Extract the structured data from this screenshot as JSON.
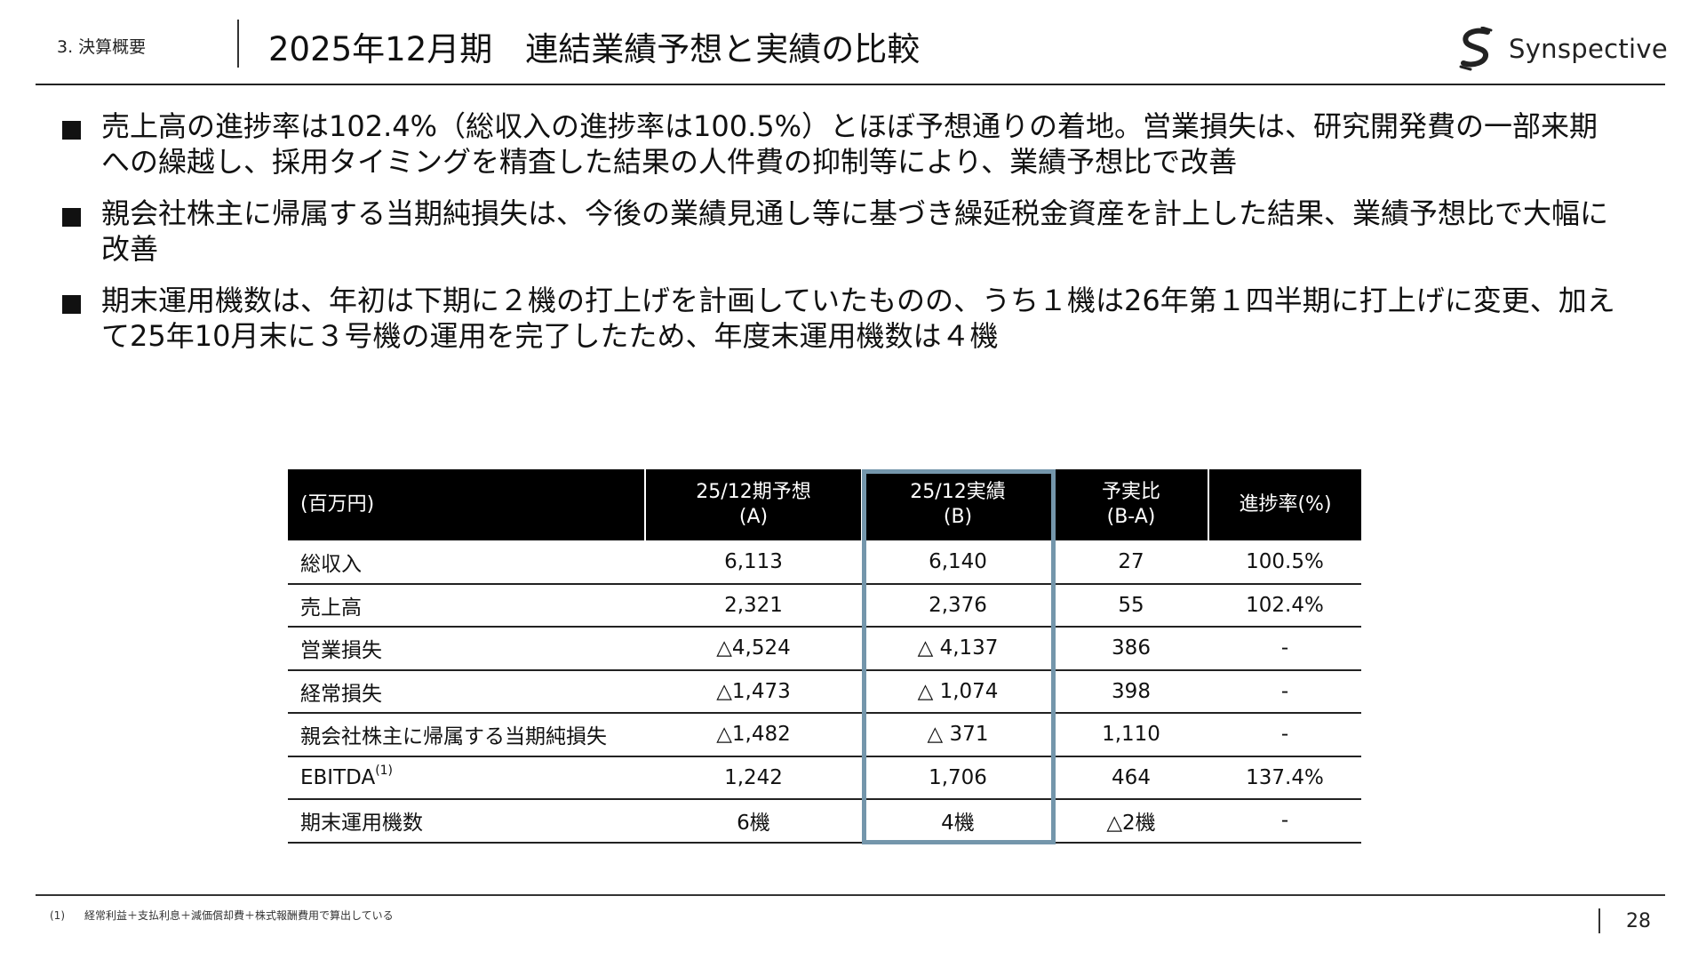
{
  "header": {
    "section": "3. 決算概要",
    "title": "2025年12月期　連結業績予想と実績の比較",
    "logo_text": "Synspective",
    "logo_icon": "synspective-s-logo"
  },
  "bullets": [
    "売上高の進捗率は102.4%（総収入の進捗率は100.5%）とほぼ予想通りの着地。営業損失は、研究開発費の一部来期への繰越し、採用タイミングを精査した結果の人件費の抑制等により、業績予想比で改善",
    "親会社株主に帰属する当期純損失は、今後の業績見通し等に基づき繰延税金資産を計上した結果、業績予想比で大幅に改善",
    "期末運用機数は、年初は下期に２機の打上げを計画していたものの、うち１機は26年第１四半期に打上げに変更、加えて25年10月末に３号機の運用を完了したため、年度末運用機数は４機"
  ],
  "table": {
    "headers": [
      {
        "line1": "(百万円)",
        "line2": ""
      },
      {
        "line1": "25/12期予想",
        "line2": "(A)"
      },
      {
        "line1": "25/12実績",
        "line2": "(B)"
      },
      {
        "line1": "予実比",
        "line2": "(B-A)"
      },
      {
        "line1": "進捗率(%)",
        "line2": ""
      }
    ],
    "rows": [
      {
        "label": "総収入",
        "label_note": "",
        "forecast": "6,113",
        "actual": "6,140",
        "diff": "27",
        "progress": "100.5%"
      },
      {
        "label": "売上高",
        "label_note": "",
        "forecast": "2,321",
        "actual": "2,376",
        "diff": "55",
        "progress": "102.4%"
      },
      {
        "label": "営業損失",
        "label_note": "",
        "forecast": "△4,524",
        "actual": "△ 4,137",
        "diff": "386",
        "progress": "-"
      },
      {
        "label": "経常損失",
        "label_note": "",
        "forecast": "△1,473",
        "actual": "△ 1,074",
        "diff": "398",
        "progress": "-"
      },
      {
        "label": "親会社株主に帰属する当期純損失",
        "label_note": "",
        "forecast": "△1,482",
        "actual": "△ 371",
        "diff": "1,110",
        "progress": "-"
      },
      {
        "label": "EBITDA",
        "label_note": "(1)",
        "forecast": "1,242",
        "actual": "1,706",
        "diff": "464",
        "progress": "137.4%"
      },
      {
        "label": "期末運用機数",
        "label_note": "",
        "forecast": "6機",
        "actual": "4機",
        "diff": "△2機",
        "progress": "-"
      }
    ],
    "highlight_color": "#7496ab"
  },
  "footer": {
    "footnote_num": "(1)",
    "footnote_text": "経常利益＋支払利息＋減価償却費＋株式報酬費用で算出している",
    "page_number": "28"
  }
}
